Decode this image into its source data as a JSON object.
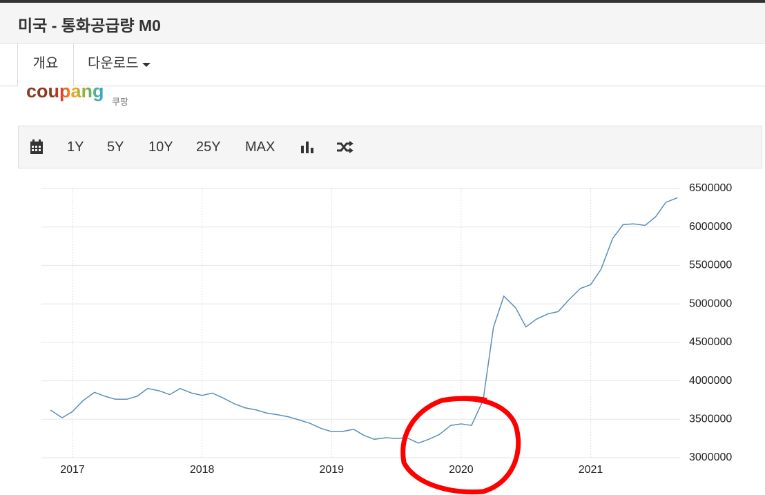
{
  "header": {
    "title": "미국 - 통화공급량 M0"
  },
  "tabs": [
    "개요",
    "다운로드"
  ],
  "ad": {
    "brand": "coupang",
    "caption": "쿠팡"
  },
  "toolbar": [
    "1Y",
    "5Y",
    "10Y",
    "25Y",
    "MAX"
  ],
  "chart_data": {
    "type": "line",
    "color": "#5b8db8",
    "x": [
      2016.83,
      2016.92,
      2017.0,
      2017.08,
      2017.17,
      2017.25,
      2017.33,
      2017.42,
      2017.5,
      2017.58,
      2017.67,
      2017.75,
      2017.83,
      2017.92,
      2018.0,
      2018.08,
      2018.17,
      2018.25,
      2018.33,
      2018.42,
      2018.5,
      2018.58,
      2018.67,
      2018.75,
      2018.83,
      2018.92,
      2019.0,
      2019.08,
      2019.17,
      2019.25,
      2019.33,
      2019.42,
      2019.5,
      2019.58,
      2019.67,
      2019.75,
      2019.83,
      2019.92,
      2020.0,
      2020.08,
      2020.17,
      2020.25,
      2020.33,
      2020.42,
      2020.5,
      2020.58,
      2020.67,
      2020.75,
      2020.83,
      2020.92,
      2021.0,
      2021.08,
      2021.17,
      2021.25,
      2021.33,
      2021.42,
      2021.5,
      2021.58,
      2021.67
    ],
    "values": [
      3620000,
      3520000,
      3600000,
      3740000,
      3850000,
      3800000,
      3760000,
      3760000,
      3800000,
      3900000,
      3870000,
      3820000,
      3900000,
      3840000,
      3810000,
      3840000,
      3770000,
      3700000,
      3650000,
      3620000,
      3580000,
      3560000,
      3530000,
      3490000,
      3450000,
      3380000,
      3340000,
      3340000,
      3370000,
      3290000,
      3240000,
      3260000,
      3250000,
      3260000,
      3190000,
      3240000,
      3300000,
      3420000,
      3440000,
      3420000,
      3750000,
      4700000,
      5100000,
      4950000,
      4700000,
      4800000,
      4870000,
      4900000,
      5050000,
      5200000,
      5250000,
      5450000,
      5850000,
      6030000,
      6040000,
      6020000,
      6130000,
      6320000,
      6380000
    ],
    "xlim": [
      2016.76,
      2021.69
    ],
    "xticks": [
      2017,
      2018,
      2019,
      2020,
      2021
    ],
    "ylim": [
      3000000,
      6500000
    ],
    "yticks": [
      3000000,
      3500000,
      4000000,
      4500000,
      5000000,
      5500000,
      6000000,
      6500000
    ],
    "grid": true
  }
}
